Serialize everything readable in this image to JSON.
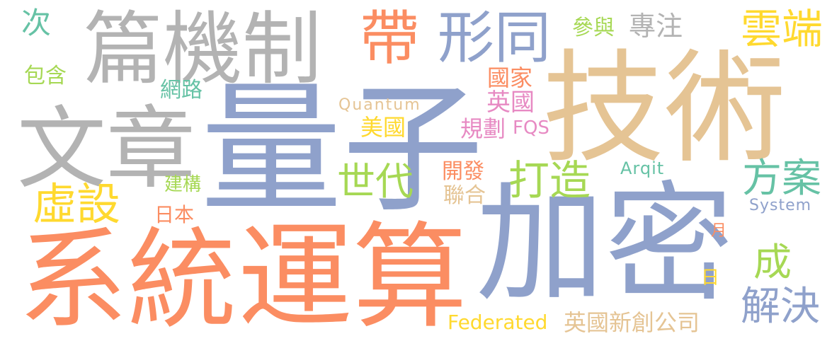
{
  "palette": {
    "blue": "#8fa1cb",
    "orange": "#fb8d62",
    "gray": "#b3b3b3",
    "tan": "#e5c494",
    "green": "#a6d854",
    "yellow": "#ffd92f",
    "teal": "#66c2a5",
    "pink": "#e78ac3"
  },
  "words": [
    {
      "id": "liangzi",
      "text": "量子",
      "color": "blue"
    },
    {
      "id": "jishu",
      "text": "技術",
      "color": "tan"
    },
    {
      "id": "jiami",
      "text": "加密",
      "color": "blue"
    },
    {
      "id": "xitong",
      "text": "系統",
      "color": "orange"
    },
    {
      "id": "yunsuan",
      "text": "運算",
      "color": "orange"
    },
    {
      "id": "wenzhang",
      "text": "文章",
      "color": "gray"
    },
    {
      "id": "pianjizhi",
      "text": "篇機制",
      "color": "gray"
    },
    {
      "id": "dai",
      "text": "帶",
      "color": "orange"
    },
    {
      "id": "xingtong",
      "text": "形同",
      "color": "blue"
    },
    {
      "id": "yunduan",
      "text": "雲端",
      "color": "yellow"
    },
    {
      "id": "ci",
      "text": "次",
      "color": "teal"
    },
    {
      "id": "baohan",
      "text": "包含",
      "color": "green"
    },
    {
      "id": "canyu",
      "text": "參與",
      "color": "green"
    },
    {
      "id": "zhuanzhu",
      "text": "專注",
      "color": "gray"
    },
    {
      "id": "wanglu",
      "text": "網路",
      "color": "teal"
    },
    {
      "id": "guojia",
      "text": "國家",
      "color": "orange"
    },
    {
      "id": "yingguo",
      "text": "英國",
      "color": "pink"
    },
    {
      "id": "quantum",
      "text": "Quantum",
      "color": "tan"
    },
    {
      "id": "meiguo",
      "text": "美國",
      "color": "yellow"
    },
    {
      "id": "guihua",
      "text": "規劃",
      "color": "pink"
    },
    {
      "id": "fqs",
      "text": "FQS",
      "color": "pink"
    },
    {
      "id": "shidai",
      "text": "世代",
      "color": "green"
    },
    {
      "id": "dazao",
      "text": "打造",
      "color": "green"
    },
    {
      "id": "fangan",
      "text": "方案",
      "color": "teal"
    },
    {
      "id": "xushe",
      "text": "虛設",
      "color": "yellow"
    },
    {
      "id": "arqit",
      "text": "Arqit",
      "color": "teal"
    },
    {
      "id": "kaifa",
      "text": "開發",
      "color": "orange"
    },
    {
      "id": "lianhe",
      "text": "聯合",
      "color": "tan"
    },
    {
      "id": "jiangou",
      "text": "建構",
      "color": "green"
    },
    {
      "id": "riben",
      "text": "日本",
      "color": "orange"
    },
    {
      "id": "system",
      "text": "System",
      "color": "blue"
    },
    {
      "id": "yue",
      "text": "月",
      "color": "orange"
    },
    {
      "id": "cheng",
      "text": "成",
      "color": "green"
    },
    {
      "id": "ri",
      "text": "日",
      "color": "yellow"
    },
    {
      "id": "jiejue",
      "text": "解決",
      "color": "blue"
    },
    {
      "id": "federated",
      "text": "Federated",
      "color": "yellow"
    },
    {
      "id": "yingguoxinchuang",
      "text": "英國新創公司",
      "color": "tan"
    }
  ]
}
